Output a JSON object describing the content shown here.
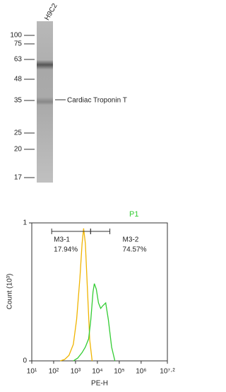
{
  "blot": {
    "lane_label": "H9C2",
    "markers": [
      "100",
      "75",
      "63",
      "48",
      "35",
      "25",
      "20",
      "17"
    ],
    "band_label": "Cardiac Troponin T"
  },
  "chart_data": {
    "type": "line",
    "title": "P1",
    "x_label": "PE-H",
    "y_label": "Count (10³)",
    "xlim": [
      1,
      7.2
    ],
    "xticks": [
      {
        "value": 1,
        "label": "10¹"
      },
      {
        "value": 2,
        "label": "10²"
      },
      {
        "value": 3,
        "label": "10³"
      },
      {
        "value": 4,
        "label": "10⁴"
      },
      {
        "value": 5,
        "label": "10⁵"
      },
      {
        "value": 6,
        "label": "10⁶"
      },
      {
        "value": 7.2,
        "label": "10⁷·²"
      }
    ],
    "ylim": [
      0,
      1
    ],
    "yticks": [
      0,
      1
    ],
    "series": [
      {
        "color": "#f0b400",
        "x": [
          2.3,
          2.5,
          2.7,
          2.9,
          3.05,
          3.2,
          3.3,
          3.37,
          3.45,
          3.55,
          3.65,
          3.76
        ],
        "values": [
          0,
          0.01,
          0.04,
          0.12,
          0.3,
          0.6,
          0.85,
          0.96,
          0.85,
          0.5,
          0.15,
          0
        ]
      },
      {
        "color": "#33cc33",
        "x": [
          2.9,
          3.1,
          3.3,
          3.45,
          3.6,
          3.7,
          3.8,
          3.86,
          3.95,
          4.05,
          4.15,
          4.25,
          4.38,
          4.5,
          4.65,
          4.8
        ],
        "values": [
          0,
          0.02,
          0.06,
          0.1,
          0.16,
          0.3,
          0.5,
          0.56,
          0.52,
          0.42,
          0.38,
          0.4,
          0.42,
          0.3,
          0.1,
          0
        ]
      }
    ],
    "gates": [
      {
        "name": "M3-1",
        "range": [
          1.91,
          3.69
        ],
        "percent": "17.94%"
      },
      {
        "name": "M3-2",
        "range": [
          3.69,
          4.57
        ],
        "percent": "74.57%"
      }
    ]
  }
}
